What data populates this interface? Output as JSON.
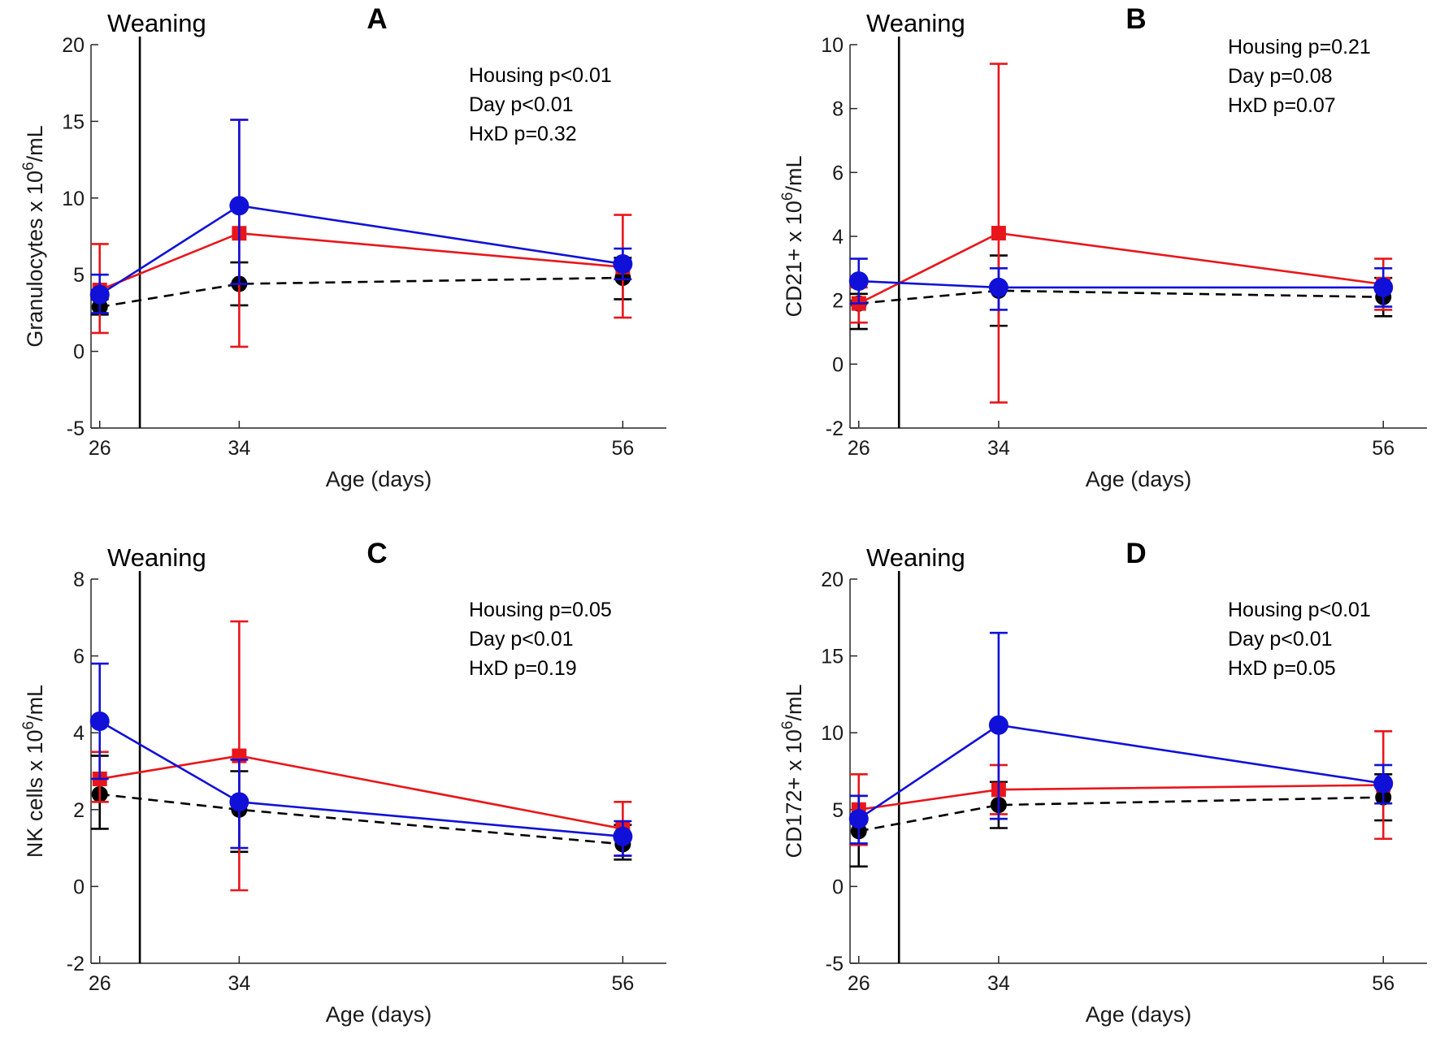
{
  "figure": {
    "weaning_label": "Weaning",
    "weaning_day": 28.3,
    "colors": {
      "red": "#e8161b",
      "blue": "#1010d8",
      "black": "#000000"
    }
  },
  "chart_data": [
    {
      "type": "line",
      "panel": "A",
      "ylabel": "Granulocytes x 10^6/mL",
      "ylabel_base": "Granulocytes x 10",
      "ylabel_sup": "6",
      "ylabel_unit": "/mL",
      "xlabel": "Age (days)",
      "xlim": [
        25.5,
        58.5
      ],
      "ylim": [
        -5,
        20
      ],
      "xticks": [
        "26",
        "34",
        "56"
      ],
      "yticks": [
        "-5",
        "0",
        "5",
        "10",
        "15",
        "20"
      ],
      "stats": [
        "Housing p<0.01",
        "Day p<0.01",
        "HxD p=0.32"
      ],
      "x": [
        26,
        34,
        56
      ],
      "series": [
        {
          "name": "black",
          "color": "#000000",
          "marker": "circle",
          "dashed": true,
          "values": [
            2.9,
            4.4,
            4.8
          ],
          "lo": [
            2.4,
            3.0,
            3.4
          ],
          "hi": [
            3.4,
            5.8,
            6.1
          ]
        },
        {
          "name": "red",
          "color": "#e8161b",
          "marker": "square",
          "dashed": false,
          "values": [
            4.0,
            7.7,
            5.5
          ],
          "lo": [
            1.2,
            0.3,
            2.2
          ],
          "hi": [
            7.0,
            15.1,
            8.9
          ]
        },
        {
          "name": "blue",
          "color": "#1010d8",
          "marker": "circle",
          "dashed": false,
          "values": [
            3.7,
            9.5,
            5.7
          ],
          "lo": [
            2.5,
            4.4,
            4.7
          ],
          "hi": [
            5.0,
            15.1,
            6.7
          ]
        }
      ]
    },
    {
      "type": "line",
      "panel": "B",
      "ylabel": "CD21+ x 10^6/mL",
      "ylabel_base": "CD21+ x 10",
      "ylabel_sup": "6",
      "ylabel_unit": "/mL",
      "xlabel": "Age (days)",
      "xlim": [
        25.5,
        58.5
      ],
      "ylim": [
        -2,
        10
      ],
      "xticks": [
        "26",
        "34",
        "56"
      ],
      "yticks": [
        "-2",
        "0",
        "2",
        "4",
        "6",
        "8",
        "10"
      ],
      "stats": [
        "Housing p=0.21",
        "Day p=0.08",
        "HxD p=0.07"
      ],
      "x": [
        26,
        34,
        56
      ],
      "series": [
        {
          "name": "black",
          "color": "#000000",
          "marker": "circle",
          "dashed": true,
          "values": [
            1.9,
            2.3,
            2.1
          ],
          "lo": [
            1.1,
            1.2,
            1.5
          ],
          "hi": [
            2.2,
            3.4,
            2.7
          ]
        },
        {
          "name": "red",
          "color": "#e8161b",
          "marker": "square",
          "dashed": false,
          "values": [
            1.9,
            4.1,
            2.5
          ],
          "lo": [
            1.3,
            -1.2,
            1.7
          ],
          "hi": [
            2.4,
            9.4,
            3.3
          ]
        },
        {
          "name": "blue",
          "color": "#1010d8",
          "marker": "circle",
          "dashed": false,
          "values": [
            2.6,
            2.4,
            2.4
          ],
          "lo": [
            1.9,
            1.7,
            1.8
          ],
          "hi": [
            3.3,
            3.0,
            3.0
          ]
        }
      ]
    },
    {
      "type": "line",
      "panel": "C",
      "ylabel": "NK cells x 10^6/mL",
      "ylabel_base": "NK cells x 10",
      "ylabel_sup": "6",
      "ylabel_unit": "/mL",
      "xlabel": "Age (days)",
      "xlim": [
        25.5,
        58.5
      ],
      "ylim": [
        -2,
        8
      ],
      "xticks": [
        "26",
        "34",
        "56"
      ],
      "yticks": [
        "-2",
        "0",
        "2",
        "4",
        "6",
        "8"
      ],
      "stats": [
        "Housing p=0.05",
        "Day p<0.01",
        "HxD p=0.19"
      ],
      "x": [
        26,
        34,
        56
      ],
      "series": [
        {
          "name": "black",
          "color": "#000000",
          "marker": "circle",
          "dashed": true,
          "values": [
            2.4,
            2.0,
            1.1
          ],
          "lo": [
            1.5,
            0.9,
            0.7
          ],
          "hi": [
            3.4,
            3.0,
            1.6
          ]
        },
        {
          "name": "red",
          "color": "#e8161b",
          "marker": "square",
          "dashed": false,
          "values": [
            2.8,
            3.4,
            1.5
          ],
          "lo": [
            2.2,
            -0.1,
            0.8
          ],
          "hi": [
            3.5,
            6.9,
            2.2
          ]
        },
        {
          "name": "blue",
          "color": "#1010d8",
          "marker": "circle",
          "dashed": false,
          "values": [
            4.3,
            2.2,
            1.3
          ],
          "lo": [
            2.8,
            1.0,
            0.8
          ],
          "hi": [
            5.8,
            3.3,
            1.7
          ]
        }
      ]
    },
    {
      "type": "line",
      "panel": "D",
      "ylabel": "CD172+ x 10^6/mL",
      "ylabel_base": "CD172+ x 10",
      "ylabel_sup": "6",
      "ylabel_unit": "/mL",
      "xlabel": "Age (days)",
      "xlim": [
        25.5,
        58.5
      ],
      "ylim": [
        -5,
        20
      ],
      "xticks": [
        "26",
        "34",
        "56"
      ],
      "yticks": [
        "-5",
        "0",
        "5",
        "10",
        "15",
        "20"
      ],
      "stats": [
        "Housing p<0.01",
        "Day p<0.01",
        "HxD p=0.05"
      ],
      "x": [
        26,
        34,
        56
      ],
      "series": [
        {
          "name": "black",
          "color": "#000000",
          "marker": "circle",
          "dashed": true,
          "values": [
            3.6,
            5.3,
            5.8
          ],
          "lo": [
            1.3,
            3.8,
            4.3
          ],
          "hi": [
            5.9,
            6.8,
            7.3
          ]
        },
        {
          "name": "red",
          "color": "#e8161b",
          "marker": "square",
          "dashed": false,
          "values": [
            5.0,
            6.3,
            6.6
          ],
          "lo": [
            2.7,
            4.7,
            3.1
          ],
          "hi": [
            7.3,
            7.9,
            10.1
          ]
        },
        {
          "name": "blue",
          "color": "#1010d8",
          "marker": "circle",
          "dashed": false,
          "values": [
            4.4,
            10.5,
            6.7
          ],
          "lo": [
            2.8,
            4.4,
            5.4
          ],
          "hi": [
            5.9,
            16.5,
            7.9
          ]
        }
      ]
    }
  ]
}
